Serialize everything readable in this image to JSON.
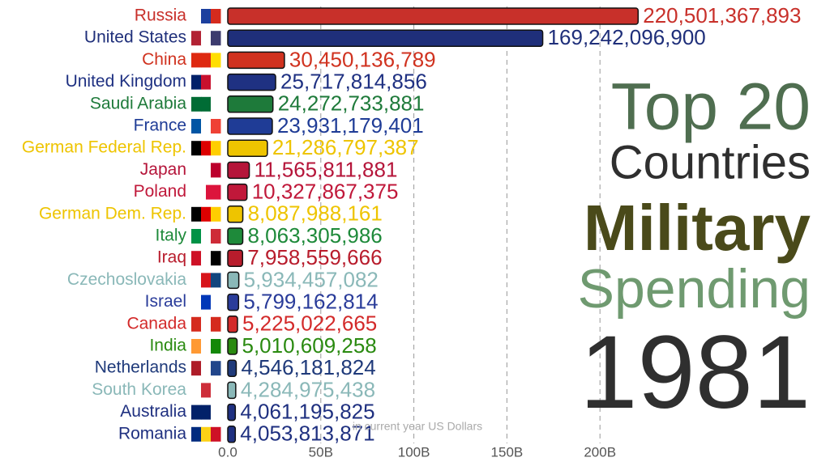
{
  "chart_data": {
    "type": "bar",
    "orientation": "horizontal",
    "title": [
      "Top 20",
      "Countries",
      "Military",
      "Spending"
    ],
    "year": "1981",
    "xlabel": "in current year US Dollars",
    "categories": [
      "Russia",
      "United States",
      "China",
      "United Kingdom",
      "Saudi Arabia",
      "France",
      "German Federal Rep.",
      "Japan",
      "Poland",
      "German Dem. Rep.",
      "Italy",
      "Iraq",
      "Czechoslovakia",
      "Israel",
      "Canada",
      "India",
      "Netherlands",
      "South Korea",
      "Australia",
      "Romania"
    ],
    "values": [
      220501367893,
      169242096900,
      30450136789,
      25717814856,
      24272733881,
      23931179401,
      21286797387,
      11565811881,
      10327867375,
      8087988161,
      8063305986,
      7958559666,
      5934457082,
      5799162814,
      5225022665,
      5010609258,
      4546181824,
      4284975438,
      4061195825,
      4053813871
    ],
    "value_labels": [
      "220,501,367,893",
      "169,242,096,900",
      "30,450,136,789",
      "25,717,814,856",
      "24,272,733,881",
      "23,931,179,401",
      "21,286,797,387",
      "11,565,811,881",
      "10,327,867,375",
      "8,087,988,161",
      "8,063,305,986",
      "7,958,559,666",
      "5,934,457,082",
      "5,799,162,814",
      "5,225,022,665",
      "5,010,609,258",
      "4,546,181,824",
      "4,284,975,438",
      "4,061,195,825",
      "4,053,813,871"
    ],
    "colors": [
      "#c8302a",
      "#1f2f7a",
      "#d0321f",
      "#1f3182",
      "#1e7a3a",
      "#1f3c96",
      "#eec400",
      "#b5153a",
      "#c0183a",
      "#eec400",
      "#1e8a3a",
      "#b81c2c",
      "#8ab8b8",
      "#2a3c9a",
      "#d32a2a",
      "#2a8a10",
      "#1f3a7a",
      "#8ab8b8",
      "#1f3080",
      "#1f3080"
    ],
    "xlim": [
      0,
      250000000000
    ],
    "xticks": [
      {
        "value": 0,
        "label": "0.0"
      },
      {
        "value": 50000000000,
        "label": "50B"
      },
      {
        "value": 100000000000,
        "label": "100B"
      },
      {
        "value": 150000000000,
        "label": "150B"
      },
      {
        "value": 200000000000,
        "label": "200B"
      }
    ],
    "grid": true
  }
}
